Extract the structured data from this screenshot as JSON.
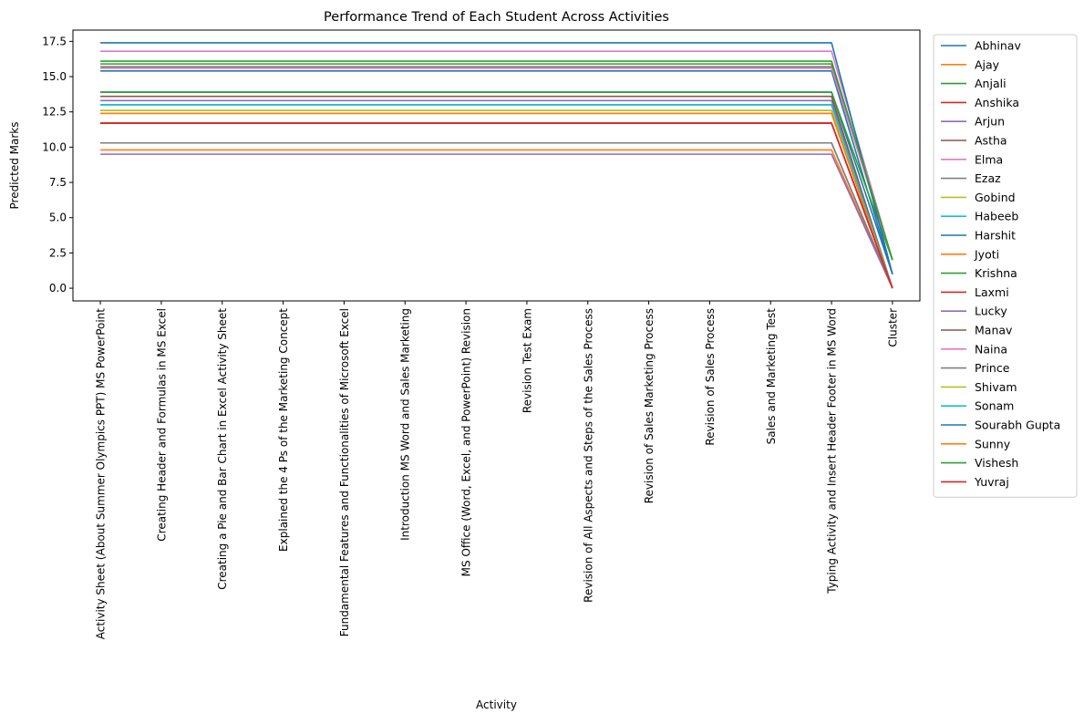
{
  "chart_data": {
    "type": "line",
    "title": "Performance Trend of Each Student Across Activities",
    "xlabel": "Activity",
    "ylabel": "Predicted Marks",
    "ylim": [
      -0.9,
      18.3
    ],
    "yticks": [
      0.0,
      2.5,
      5.0,
      7.5,
      10.0,
      12.5,
      15.0,
      17.5
    ],
    "ytick_labels": [
      "0.0",
      "2.5",
      "5.0",
      "7.5",
      "10.0",
      "12.5",
      "15.0",
      "17.5"
    ],
    "grid": false,
    "legend_placement": "outside-right",
    "categories": [
      "Activity Sheet (About Summer Olympics PPT) MS PowerPoint",
      "Creating Header and Formulas in MS Excel",
      "Creating a Pie and Bar Chart in Excel Activity Sheet",
      "Explained the 4 Ps of the Marketing Concept",
      "Fundamental Features and Functionalities of Microsoft Excel",
      "Introduction MS Word and Sales Marketing",
      "MS Office (Word, Excel, and PowerPoint) Revision",
      "Revision Test Exam",
      "Revision of All Aspects and Steps of the Sales Process",
      "Revision of Sales Marketing Process",
      "Revision of Sales Process",
      "Sales and Marketing Test",
      "Typing Activity and Insert Header Footer in MS Word",
      "Cluster"
    ],
    "series": [
      {
        "name": "Abhinav",
        "color": "#1f77b4",
        "level": 15.4,
        "cluster": 1
      },
      {
        "name": "Ajay",
        "color": "#ff7f0e",
        "level": 9.8,
        "cluster": 0
      },
      {
        "name": "Anjali",
        "color": "#2ca02c",
        "level": 15.9,
        "cluster": 2
      },
      {
        "name": "Anshika",
        "color": "#d62728",
        "level": 11.7,
        "cluster": 0
      },
      {
        "name": "Arjun",
        "color": "#9467bd",
        "level": 13.3,
        "cluster": 0
      },
      {
        "name": "Astha",
        "color": "#8c564b",
        "level": 10.3,
        "cluster": 0
      },
      {
        "name": "Elma",
        "color": "#e377c2",
        "level": 16.8,
        "cluster": 2
      },
      {
        "name": "Ezaz",
        "color": "#7f7f7f",
        "level": 15.7,
        "cluster": 2
      },
      {
        "name": "Gobind",
        "color": "#bcbd22",
        "level": 12.6,
        "cluster": 0
      },
      {
        "name": "Habeeb",
        "color": "#17becf",
        "level": 13.0,
        "cluster": 0
      },
      {
        "name": "Harshit",
        "color": "#1f77b4",
        "level": 13.9,
        "cluster": 1
      },
      {
        "name": "Jyoti",
        "color": "#ff7f0e",
        "level": 12.4,
        "cluster": 0
      },
      {
        "name": "Krishna",
        "color": "#2ca02c",
        "level": 13.9,
        "cluster": 2
      },
      {
        "name": "Laxmi",
        "color": "#d62728",
        "level": 11.7,
        "cluster": 0
      },
      {
        "name": "Lucky",
        "color": "#9467bd",
        "level": 9.5,
        "cluster": 0
      },
      {
        "name": "Manav",
        "color": "#8c564b",
        "level": 13.6,
        "cluster": 0
      },
      {
        "name": "Naina",
        "color": "#e377c2",
        "level": 15.6,
        "cluster": 2
      },
      {
        "name": "Prince",
        "color": "#7f7f7f",
        "level": 10.3,
        "cluster": 0
      },
      {
        "name": "Shivam",
        "color": "#bcbd22",
        "level": 12.6,
        "cluster": 0
      },
      {
        "name": "Sonam",
        "color": "#17becf",
        "level": 13.0,
        "cluster": 0
      },
      {
        "name": "Sourabh Gupta",
        "color": "#1f77b4",
        "level": 17.4,
        "cluster": 1
      },
      {
        "name": "Sunny",
        "color": "#ff7f0e",
        "level": 12.4,
        "cluster": 0
      },
      {
        "name": "Vishesh",
        "color": "#2ca02c",
        "level": 16.1,
        "cluster": 2
      },
      {
        "name": "Yuvraj",
        "color": "#d62728",
        "level": 11.7,
        "cluster": 0
      }
    ]
  }
}
